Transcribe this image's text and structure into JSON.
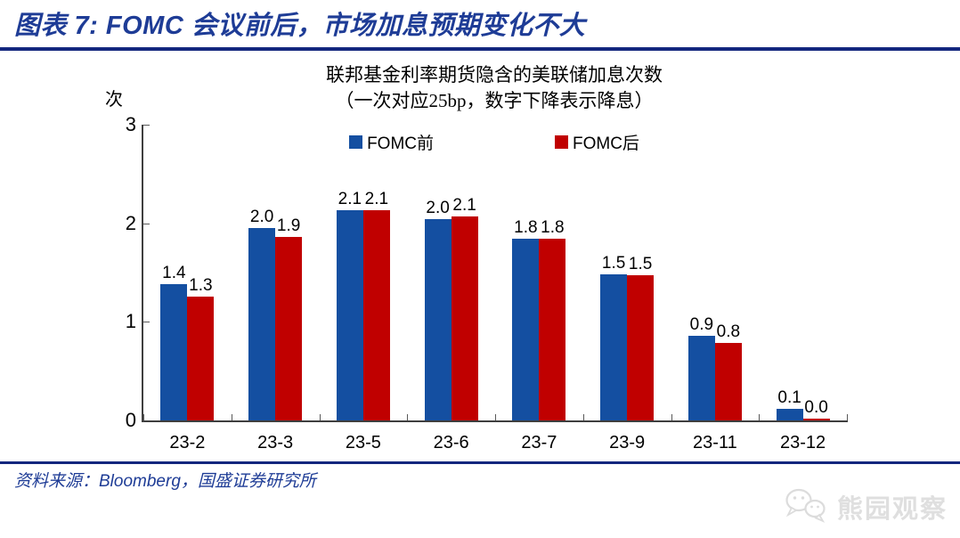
{
  "header": {
    "title": "图表 7: FOMC 会议前后，市场加息预期变化不大"
  },
  "chart": {
    "title_line1": "联邦基金利率期货隐含的美联储加息次数",
    "title_line2": "（一次对应25bp，数字下降表示降息）",
    "y_unit": "次",
    "y_tick_labels": [
      "0",
      "1",
      "2",
      "3"
    ]
  },
  "chart_data": {
    "type": "bar",
    "title": "联邦基金利率期货隐含的美联储加息次数（一次对应25bp，数字下降表示降息）",
    "categories": [
      "23-2",
      "23-3",
      "23-5",
      "23-6",
      "23-7",
      "23-9",
      "23-11",
      "23-12"
    ],
    "series": [
      {
        "name": "FOMC前",
        "color": "#144FA1",
        "values": [
          1.38,
          1.95,
          2.13,
          2.04,
          1.84,
          1.48,
          0.86,
          0.12
        ],
        "labels": [
          "1.4",
          "2.0",
          "2.1",
          "2.0",
          "1.8",
          "1.5",
          "0.9",
          "0.1"
        ]
      },
      {
        "name": "FOMC后",
        "color": "#C00000",
        "values": [
          1.26,
          1.86,
          2.13,
          2.07,
          1.84,
          1.47,
          0.79,
          0.02
        ],
        "labels": [
          "1.3",
          "1.9",
          "2.1",
          "2.1",
          "1.8",
          "1.5",
          "0.8",
          "0.0"
        ]
      }
    ],
    "ylabel": "次",
    "xlabel": "",
    "ylim": [
      0,
      3
    ],
    "y_ticks": [
      0,
      1,
      2,
      3
    ],
    "grid": false,
    "legend_position": "top-center"
  },
  "footer": {
    "source": "资料来源：Bloomberg，国盛证券研究所"
  },
  "watermark": {
    "text": "熊园观察",
    "icon": "wechat-icon"
  },
  "colors": {
    "series_blue": "#144FA1",
    "series_red": "#C00000",
    "title_blue": "#1E3C96",
    "rule_navy": "#14277E",
    "axis_gray": "#3F3F3F",
    "watermark_gray": "#DFDFDF"
  }
}
